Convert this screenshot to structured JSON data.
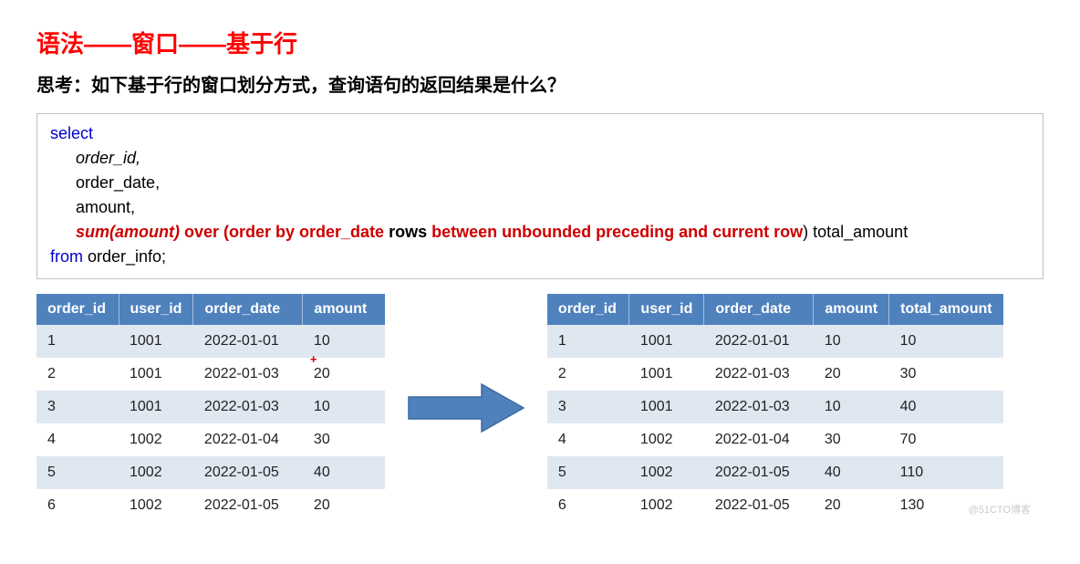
{
  "title": "语法——窗口——基于行",
  "subtitle": "思考：如下基于行的窗口划分方式，查询语句的返回结果是什么？",
  "code": {
    "select": "select",
    "col1": "order_id",
    "col2": "order_date,",
    "col3": "amount,",
    "func": "sum(amount)",
    "over_open": " over (order by order_date ",
    "rows_kw": "rows",
    "between_clause": " between unbounded preceding and current row",
    "close_alias": ") total_amount",
    "from": "from",
    "table": " order_info;"
  },
  "plus_symbol": "+",
  "left_table": {
    "headers": [
      "order_id",
      "user_id",
      "order_date",
      "amount"
    ],
    "col_widths": [
      "90px",
      "80px",
      "120px",
      "90px"
    ],
    "rows": [
      [
        "1",
        "1001",
        "2022-01-01",
        "10"
      ],
      [
        "2",
        "1001",
        "2022-01-03",
        "20"
      ],
      [
        "3",
        "1001",
        "2022-01-03",
        "10"
      ],
      [
        "4",
        "1002",
        "2022-01-04",
        "30"
      ],
      [
        "5",
        "1002",
        "2022-01-05",
        "40"
      ],
      [
        "6",
        "1002",
        "2022-01-05",
        "20"
      ]
    ]
  },
  "right_table": {
    "headers": [
      "order_id",
      "user_id",
      "order_date",
      "amount",
      "total_amount"
    ],
    "col_widths": [
      "90px",
      "80px",
      "120px",
      "80px",
      "120px"
    ],
    "rows": [
      [
        "1",
        "1001",
        "2022-01-01",
        "10",
        "10"
      ],
      [
        "2",
        "1001",
        "2022-01-03",
        "20",
        "30"
      ],
      [
        "3",
        "1001",
        "2022-01-03",
        "10",
        "40"
      ],
      [
        "4",
        "1002",
        "2022-01-04",
        "30",
        "70"
      ],
      [
        "5",
        "1002",
        "2022-01-05",
        "40",
        "110"
      ],
      [
        "6",
        "1002",
        "2022-01-05",
        "20",
        "130"
      ]
    ]
  },
  "arrow": {
    "fill": "#4f81bd",
    "stroke": "#3a6aa0",
    "width": 130,
    "height": 56
  },
  "colors": {
    "title": "#ff0000",
    "header_bg": "#4f81bd",
    "header_fg": "#ffffff",
    "row_odd": "#dfe8f1",
    "row_even": "#ffffff",
    "keyword": "#0000cc",
    "emphasis": "#cc0000",
    "border": "#c0c0c0"
  },
  "watermark": "@51CTO博客"
}
